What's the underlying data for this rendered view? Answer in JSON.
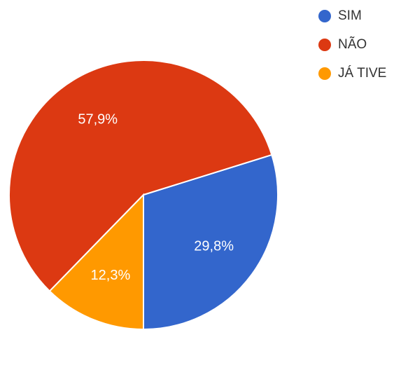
{
  "chart_data": {
    "type": "pie",
    "slices": [
      {
        "label": "SIM",
        "value": 29.8,
        "value_label": "29,8%",
        "color": "#3366cc"
      },
      {
        "label": "NÃO",
        "value": 57.9,
        "value_label": "57,9%",
        "color": "#dc3912"
      },
      {
        "label": "JÁ TIVE",
        "value": 12.3,
        "value_label": "12,3%",
        "color": "#ff9900"
      }
    ],
    "start_angle_deg": 90,
    "direction": "clockwise",
    "legend_position": "top-right",
    "title": ""
  }
}
